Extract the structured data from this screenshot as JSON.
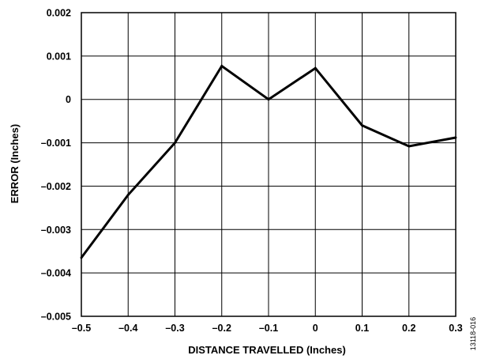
{
  "chart_data": {
    "type": "line",
    "xlabel": "DISTANCE TRAVELLED (Inches)",
    "ylabel": "ERROR (Inches)",
    "xlim": [
      -0.5,
      0.3
    ],
    "ylim": [
      -0.005,
      0.002
    ],
    "grid": true,
    "x_ticks": [
      -0.5,
      -0.4,
      -0.3,
      -0.2,
      -0.1,
      0,
      0.1,
      0.2,
      0.3
    ],
    "x_tick_labels": [
      "–0.5",
      "–0.4",
      "–0.3",
      "–0.2",
      "–0.1",
      "0",
      "0.1",
      "0.2",
      "0.3"
    ],
    "y_ticks": [
      0.002,
      0.001,
      0,
      -0.001,
      -0.002,
      -0.003,
      -0.004,
      -0.005
    ],
    "y_tick_labels": [
      "0.002",
      "0.001",
      "0",
      "–0.001",
      "–0.002",
      "–0.003",
      "–0.004",
      "–0.005"
    ],
    "series": [
      {
        "x": [
          -0.5,
          -0.4,
          -0.3,
          -0.2,
          -0.1,
          0,
          0.1,
          0.2,
          0.3
        ],
        "values": [
          -0.00365,
          -0.0022,
          -0.001,
          0.00077,
          0.0,
          0.00072,
          -0.0006,
          -0.00108,
          -0.00088
        ]
      }
    ],
    "figure_id": "13118-016"
  }
}
